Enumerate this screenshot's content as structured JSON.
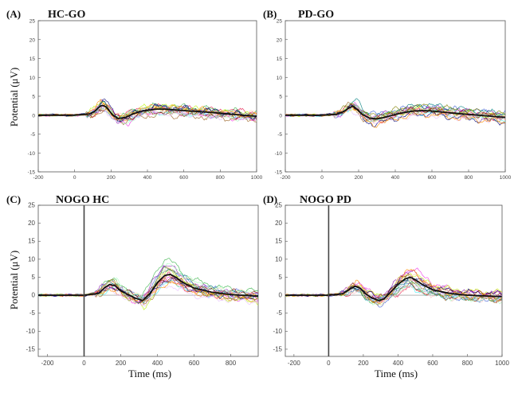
{
  "figure": {
    "ylabel": "Potential (μV)",
    "xlabel": "Time (ms)"
  },
  "chart_data": [
    {
      "type": "line",
      "panel_label": "(A)",
      "title": "HC-GO",
      "ylabel": "Potential (μV)",
      "xlabel": "",
      "xlim": [
        -200,
        1000
      ],
      "ylim": [
        -15,
        25
      ],
      "xticks": [
        -200,
        0,
        200,
        400,
        600,
        800,
        1000
      ],
      "yticks": [
        -15,
        -10,
        -5,
        0,
        5,
        10,
        15,
        20,
        25
      ],
      "stimulus_line": false,
      "grand_average": {
        "x": [
          -200,
          -100,
          0,
          80,
          110,
          130,
          150,
          170,
          190,
          210,
          240,
          280,
          320,
          360,
          400,
          450,
          500,
          550,
          600,
          700,
          800,
          900,
          1000
        ],
        "y": [
          0,
          0,
          0,
          0.3,
          1.0,
          2.0,
          2.6,
          2.3,
          1.2,
          0.0,
          -0.9,
          -0.6,
          0.3,
          1.0,
          1.3,
          1.6,
          1.6,
          1.4,
          1.2,
          0.9,
          0.5,
          0.1,
          -0.3
        ]
      },
      "variability": 2.2,
      "subjects": 18
    },
    {
      "type": "line",
      "panel_label": "(B)",
      "title": "PD-GO",
      "ylabel": "",
      "xlabel": "",
      "xlim": [
        -200,
        1000
      ],
      "ylim": [
        -15,
        25
      ],
      "xticks": [
        -200,
        0,
        200,
        400,
        600,
        800,
        1000
      ],
      "yticks": [
        -15,
        -10,
        -5,
        0,
        5,
        10,
        15,
        20,
        25
      ],
      "stimulus_line": false,
      "grand_average": {
        "x": [
          -200,
          -100,
          0,
          80,
          120,
          150,
          170,
          190,
          220,
          260,
          300,
          350,
          400,
          450,
          500,
          550,
          600,
          700,
          800,
          900,
          1000
        ],
        "y": [
          0,
          0,
          0,
          0.2,
          1.0,
          2.0,
          2.4,
          1.6,
          0.2,
          -0.8,
          -1.0,
          -0.5,
          0.2,
          0.7,
          1.1,
          1.2,
          1.1,
          0.6,
          0.2,
          -0.2,
          -0.6
        ]
      },
      "variability": 2.4,
      "subjects": 18
    },
    {
      "type": "line",
      "panel_label": "(C)",
      "title": "NOGO HC",
      "ylabel": "Potential (μV)",
      "xlabel": "Time (ms)",
      "xlim": [
        -250,
        950
      ],
      "ylim": [
        -17,
        25
      ],
      "xticks": [
        -200,
        0,
        200,
        400,
        600,
        800
      ],
      "yticks": [
        -15,
        -10,
        -5,
        0,
        5,
        10,
        15,
        20,
        25
      ],
      "stimulus_line": true,
      "grand_average": {
        "x": [
          -250,
          -150,
          -50,
          0,
          80,
          110,
          140,
          170,
          200,
          240,
          280,
          320,
          360,
          400,
          440,
          470,
          500,
          540,
          600,
          700,
          800,
          950
        ],
        "y": [
          0,
          0,
          0,
          0,
          0.5,
          2.0,
          3.0,
          2.6,
          1.2,
          0.2,
          -0.8,
          -1.5,
          0.5,
          3.5,
          5.5,
          5.8,
          5.0,
          3.5,
          2.0,
          0.8,
          0.2,
          -0.3
        ]
      },
      "variability": 3.3,
      "subjects": 18
    },
    {
      "type": "line",
      "panel_label": "(D)",
      "title": "NOGO PD",
      "ylabel": "",
      "xlabel": "Time (ms)",
      "xlim": [
        -250,
        1000
      ],
      "ylim": [
        -17,
        25
      ],
      "xticks": [
        -200,
        0,
        200,
        400,
        600,
        800,
        1000
      ],
      "yticks": [
        -15,
        -10,
        -5,
        0,
        5,
        10,
        15,
        20,
        25
      ],
      "stimulus_line": true,
      "grand_average": {
        "x": [
          -250,
          -150,
          -50,
          0,
          80,
          120,
          150,
          180,
          210,
          250,
          290,
          320,
          360,
          400,
          440,
          470,
          500,
          540,
          600,
          700,
          800,
          1000
        ],
        "y": [
          0,
          0,
          0,
          0,
          0.4,
          1.6,
          2.5,
          2.0,
          0.5,
          -0.8,
          -1.5,
          -1.0,
          1.0,
          3.0,
          4.5,
          5.0,
          4.3,
          3.0,
          1.5,
          0.5,
          0.0,
          -0.4
        ]
      },
      "variability": 2.8,
      "subjects": 18
    }
  ]
}
